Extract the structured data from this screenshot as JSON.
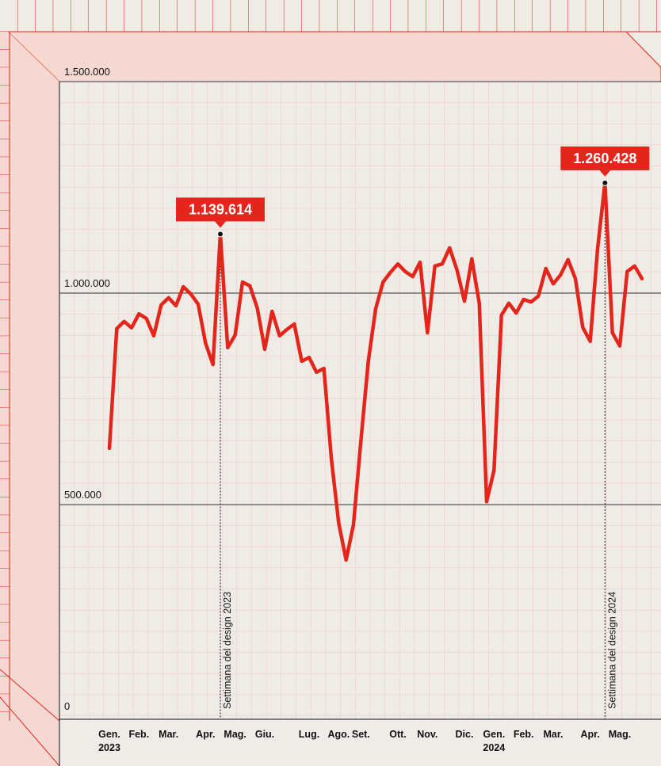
{
  "chart_data": {
    "type": "line",
    "color": "#e3251b",
    "categories": [
      "Gen.",
      null,
      null,
      null,
      "Feb.",
      null,
      null,
      null,
      "Mar.",
      null,
      null,
      null,
      null,
      "Apr.",
      null,
      null,
      null,
      "Mag.",
      null,
      null,
      null,
      "Giu.",
      null,
      null,
      null,
      null,
      null,
      "Lug.",
      null,
      null,
      null,
      "Ago.",
      null,
      null,
      "Set.",
      null,
      null,
      null,
      null,
      "Ott.",
      null,
      null,
      null,
      "Nov.",
      null,
      null,
      null,
      null,
      "Dic.",
      null,
      null,
      null,
      "Gen.",
      null,
      null,
      null,
      "Feb.",
      null,
      null,
      null,
      "Mar.",
      null,
      null,
      null,
      null,
      "Apr.",
      null,
      null,
      null,
      "Mag.",
      null,
      null,
      null
    ],
    "years": [
      "2023",
      null,
      null,
      null,
      null,
      null,
      null,
      null,
      null,
      null,
      null,
      null,
      null,
      null,
      null,
      null,
      null,
      null,
      null,
      null,
      null,
      null,
      null,
      null,
      null,
      null,
      null,
      null,
      null,
      null,
      null,
      null,
      null,
      null,
      null,
      null,
      null,
      null,
      null,
      null,
      null,
      null,
      null,
      null,
      null,
      null,
      null,
      null,
      null,
      null,
      null,
      null,
      "2024",
      null,
      null,
      null,
      null,
      null,
      null,
      null,
      null,
      null,
      null,
      null,
      null,
      null,
      null,
      null,
      null,
      null,
      null,
      null,
      null
    ],
    "values": [
      633000,
      916000,
      933000,
      918000,
      951000,
      940000,
      899000,
      972000,
      989000,
      970000,
      1015000,
      998000,
      974000,
      882000,
      831000,
      1139614,
      871000,
      901000,
      1026000,
      1017000,
      964000,
      867000,
      957000,
      899000,
      914000,
      927000,
      839000,
      848000,
      813000,
      822000,
      610000,
      457000,
      369000,
      453000,
      650000,
      839000,
      963000,
      1026000,
      1049000,
      1069000,
      1051000,
      1039000,
      1073000,
      906000,
      1064000,
      1069000,
      1107000,
      1054000,
      981000,
      1081000,
      976000,
      507000,
      581000,
      948000,
      976000,
      953000,
      985000,
      979000,
      993000,
      1058000,
      1022000,
      1043000,
      1079000,
      1034000,
      919000,
      886000,
      1105000,
      1260428,
      906000,
      875000,
      1051000,
      1064000,
      1034000
    ],
    "ylim": [
      0,
      1500000
    ],
    "yticks": [
      0,
      {
        "value": 500000,
        "label": "500.000"
      },
      {
        "value": 1000000,
        "label": "1.000.000"
      },
      {
        "value": 1500000,
        "label": "1.500.000"
      }
    ],
    "annotations": [
      {
        "index": 15,
        "label": "1.139.614",
        "text": "Settimana del design 2023"
      },
      {
        "index": 67,
        "label": "1.260.428",
        "text": "Settimana del design 2024"
      }
    ]
  }
}
